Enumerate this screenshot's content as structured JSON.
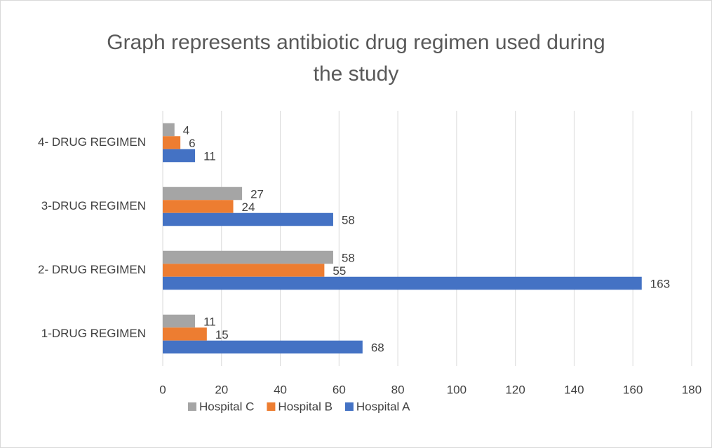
{
  "chart_data": {
    "type": "bar",
    "orientation": "horizontal",
    "title": "Graph represents antibiotic drug regimen used during the study",
    "categories": [
      "1-DRUG REGIMEN",
      "2- DRUG REGIMEN",
      "3-DRUG REGIMEN",
      "4- DRUG REGIMEN"
    ],
    "series": [
      {
        "name": "Hospital C",
        "color": "#a5a5a5",
        "values": [
          11,
          58,
          27,
          4
        ]
      },
      {
        "name": "Hospital B",
        "color": "#ed7d31",
        "values": [
          15,
          55,
          24,
          6
        ]
      },
      {
        "name": "Hospital A",
        "color": "#4472c4",
        "values": [
          68,
          163,
          58,
          11
        ]
      }
    ],
    "xlim": [
      0,
      180
    ],
    "xticks": [
      0,
      20,
      40,
      60,
      80,
      100,
      120,
      140,
      160,
      180
    ],
    "grid": true,
    "legend": "bottom"
  }
}
